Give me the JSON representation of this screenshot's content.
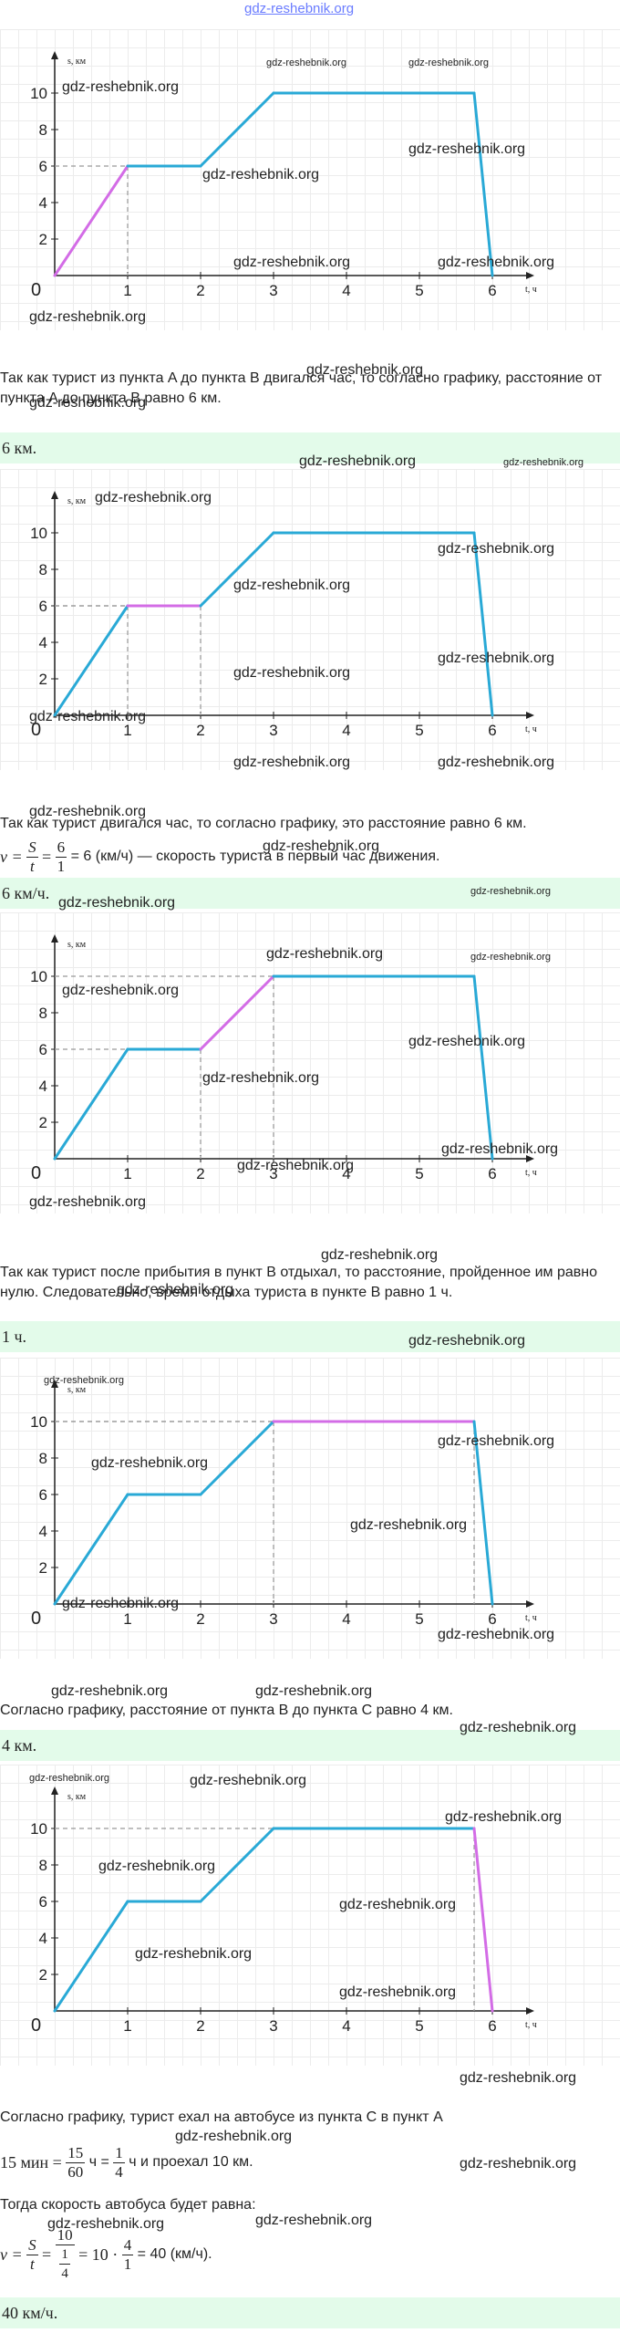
{
  "site_header": "gdz-reshebnik.org",
  "watermark": "gdz-reshebnik.org",
  "graph": {
    "y_axis_label": "s, км",
    "x_axis_label": "t, ч",
    "origin_label": "0",
    "y_ticks": [
      "2",
      "4",
      "6",
      "8",
      "10"
    ],
    "x_ticks": [
      "1",
      "2",
      "3",
      "4",
      "5",
      "6"
    ]
  },
  "chart_data": {
    "type": "line",
    "xlabel": "t, ч",
    "ylabel": "s, км",
    "xlim": [
      0,
      6.5
    ],
    "ylim": [
      0,
      11
    ],
    "x": [
      0,
      1,
      2,
      3,
      5.75,
      6
    ],
    "y": [
      0,
      6,
      6,
      10,
      10,
      0
    ],
    "line_color": "#29a9d6",
    "highlight_color": "#d36ce6",
    "highlighted_segments_per_panel": [
      [
        0,
        1
      ],
      [
        1,
        2
      ],
      [
        2,
        3
      ],
      [
        3,
        4
      ],
      [
        4,
        5
      ]
    ]
  },
  "sections": [
    {
      "explanation": "Так как турист из пункта A до пункта B двигался час, то согласно графику, расстояние от пункта A до пункта B равно 6 км.",
      "answer": "6 км."
    },
    {
      "explanation_line1": "Так как турист двигался час, то согласно графику, это расстояние равно 6 км.",
      "formula_prefix": "v =",
      "formula_S": "S",
      "formula_t": "t",
      "formula_mid": "=",
      "formula_6": "6",
      "formula_1": "1",
      "formula_end": "= 6 (км/ч) — скорость туриста в первый час движения.",
      "answer": "6 км/ч."
    },
    {
      "explanation": "Так как турист после прибытия в пункт B отдыхал, то расстояние, пройденное им равно нулю. Следовательно, время отдыха туриста в пункте B равно 1 ч.",
      "answer": "1 ч."
    },
    {
      "explanation": "Согласно графику, расстояние от пункта B до пункта C равно 4 км.",
      "answer": "4 км."
    },
    {
      "explanation_line1": "Согласно графику, турист ехал на автобусе из пункта C в пункт A",
      "time_prefix": "15 мин =",
      "time_15": "15",
      "time_60": "60",
      "time_mid": "ч =",
      "time_1": "1",
      "time_4": "4",
      "time_end": "ч и проехал 10 км.",
      "speed_intro": "Тогда скорость автобуса будет равна:",
      "speed_prefix": "v =",
      "speed_S": "S",
      "speed_t": "t",
      "speed_eq": "=",
      "speed_10": "10",
      "speed_1": "1",
      "speed_4": "4",
      "speed_mid": "= 10 ·",
      "speed_4b": "4",
      "speed_1b": "1",
      "speed_end": "= 40 (км/ч).",
      "answer": "40 км/ч."
    }
  ]
}
